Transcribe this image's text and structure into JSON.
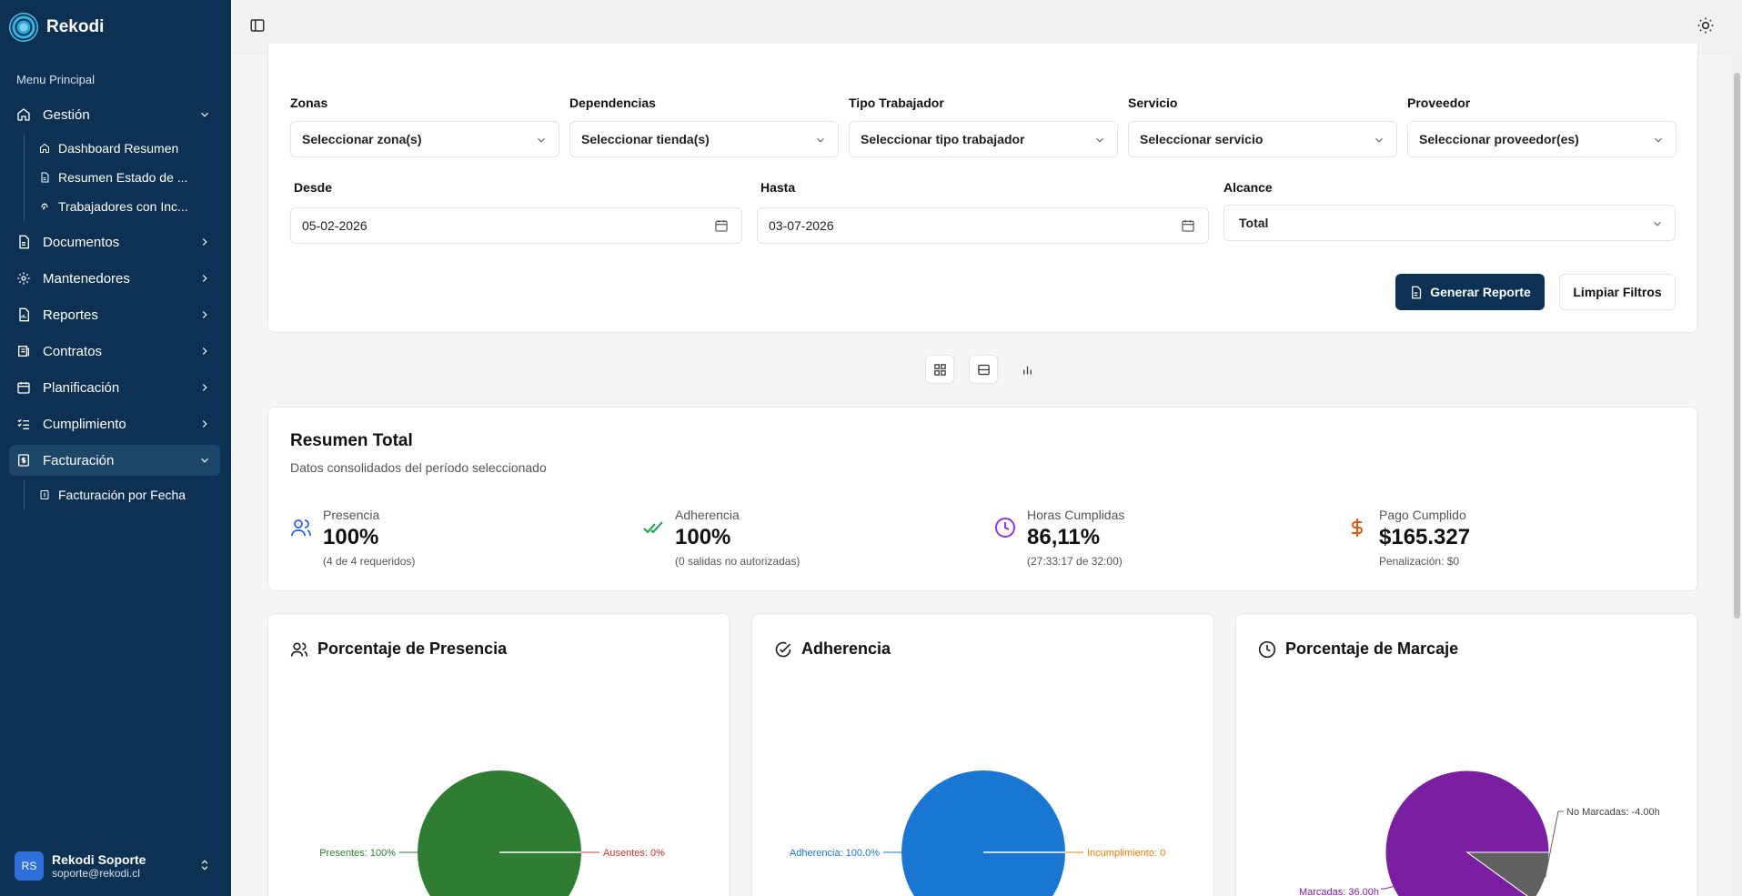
{
  "sidebar": {
    "brand": "Rekodi",
    "menu_title": "Menu Principal",
    "items": [
      {
        "label": "Gestión",
        "icon": "home-icon",
        "expanded": true
      },
      {
        "label": "Documentos",
        "icon": "document-icon"
      },
      {
        "label": "Mantenedores",
        "icon": "gear-icon"
      },
      {
        "label": "Reportes",
        "icon": "report-icon"
      },
      {
        "label": "Contratos",
        "icon": "contract-icon"
      },
      {
        "label": "Planificación",
        "icon": "calendar-icon"
      },
      {
        "label": "Cumplimiento",
        "icon": "checklist-icon"
      },
      {
        "label": "Facturación",
        "icon": "invoice-icon",
        "expanded": true,
        "active": true
      }
    ],
    "gestion_sub": [
      {
        "label": "Dashboard Resumen",
        "icon": "home-icon"
      },
      {
        "label": "Resumen Estado de ...",
        "icon": "document-icon"
      },
      {
        "label": "Trabajadores con Inc...",
        "icon": "fingerprint-icon"
      }
    ],
    "facturacion_sub": [
      {
        "label": "Facturación por Fecha",
        "icon": "invoice-icon"
      }
    ],
    "user": {
      "initials": "RS",
      "name": "Rekodi Soporte",
      "email": "soporte@rekodi.cl"
    }
  },
  "filters": {
    "zonas": {
      "label": "Zonas",
      "value": "Seleccionar zona(s)"
    },
    "dependencias": {
      "label": "Dependencias",
      "value": "Seleccionar tienda(s)"
    },
    "tipo_trabajador": {
      "label": "Tipo Trabajador",
      "value": "Seleccionar tipo trabajador"
    },
    "servicio": {
      "label": "Servicio",
      "value": "Seleccionar servicio"
    },
    "proveedor": {
      "label": "Proveedor",
      "value": "Seleccionar proveedor(es)"
    },
    "desde": {
      "label": "Desde",
      "value": "05-02-2026"
    },
    "hasta": {
      "label": "Hasta",
      "value": "03-07-2026"
    },
    "alcance": {
      "label": "Alcance",
      "value": "Total"
    },
    "generate_label": "Generar Reporte",
    "clear_label": "Limpiar Filtros"
  },
  "summary": {
    "title": "Resumen Total",
    "subtitle": "Datos consolidados del período seleccionado",
    "stats": [
      {
        "label": "Presencia",
        "value": "100%",
        "detail": "(4 de 4 requeridos)",
        "icon": "users-icon",
        "color": "#2563eb"
      },
      {
        "label": "Adherencia",
        "value": "100%",
        "detail": "(0 salidas no autorizadas)",
        "icon": "double-check-icon",
        "color": "#16a34a"
      },
      {
        "label": "Horas Cumplidas",
        "value": "86,11%",
        "detail": "(27:33:17 de 32:00)",
        "icon": "clock-icon",
        "color": "#9333ea"
      },
      {
        "label": "Pago Cumplido",
        "value": "$165.327",
        "detail": "Penalización: $0",
        "icon": "dollar-icon",
        "color": "#ea580c"
      }
    ]
  },
  "charts": {
    "presencia": {
      "title": "Porcentaje de Presencia",
      "left_label": "Presentes: 100%",
      "right_label": "Ausentes: 0%"
    },
    "adherencia": {
      "title": "Adherencia",
      "left_label": "Adherencia: 100.0%",
      "right_label": "Incumplimiento: 0"
    },
    "marcaje": {
      "title": "Porcentaje de Marcaje",
      "left_label": "Marcadas: 36.00h",
      "right_label": "No Marcadas: -4.00h"
    }
  },
  "chart_data": [
    {
      "type": "pie",
      "title": "Porcentaje de Presencia",
      "categories": [
        "Presentes",
        "Ausentes"
      ],
      "values": [
        100,
        0
      ],
      "colors": [
        "#2e7d32",
        "#d32f2f"
      ]
    },
    {
      "type": "pie",
      "title": "Adherencia",
      "categories": [
        "Adherencia",
        "Incumplimiento"
      ],
      "values": [
        100,
        0
      ],
      "colors": [
        "#1976d2",
        "#f57c00"
      ]
    },
    {
      "type": "pie",
      "title": "Porcentaje de Marcaje",
      "categories": [
        "Marcadas",
        "No Marcadas"
      ],
      "values": [
        36.0,
        -4.0
      ],
      "colors": [
        "#7b1fa2",
        "#616161"
      ]
    }
  ],
  "colors": {
    "sidebar": "#0c3153",
    "primary": "#0c3153",
    "active_item": "#1d4669"
  }
}
